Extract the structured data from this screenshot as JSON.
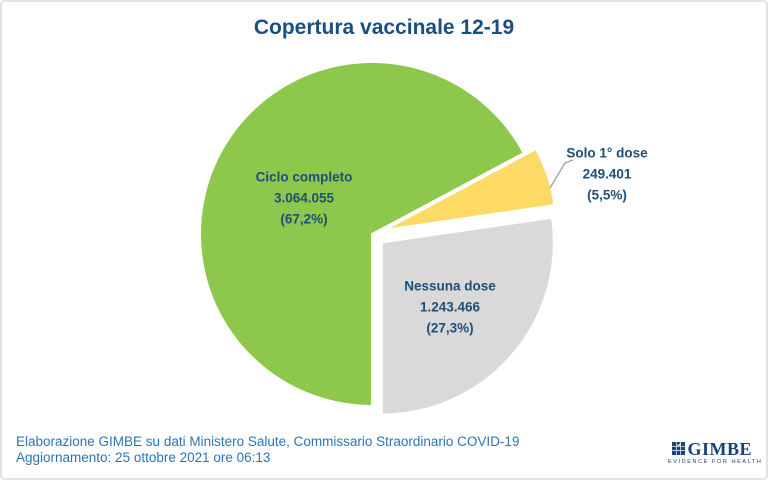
{
  "title": "Copertura vaccinale 12-19",
  "chart_data": {
    "type": "pie",
    "title": "Copertura vaccinale 12-19",
    "start_angle_deg": 180,
    "direction": "clockwise",
    "legend": "none",
    "label_color": "#1f4e79",
    "slices": [
      {
        "label": "Ciclo completo",
        "value": 3064055,
        "value_text": "3.064.055",
        "pct": 67.2,
        "pct_text": "(67,2%)",
        "color": "#8dc74b",
        "explode": 0
      },
      {
        "label": "Solo 1° dose",
        "value": 249401,
        "value_text": "249.401",
        "pct": 5.5,
        "pct_text": "(5,5%)",
        "color": "#fdd965",
        "explode": 13
      },
      {
        "label": "Nessuna dose",
        "value": 1243466,
        "value_text": "1.243.466",
        "pct": 27.3,
        "pct_text": "(27,3%)",
        "color": "#d9d9d9",
        "explode": 13
      }
    ]
  },
  "footer": {
    "line1": "Elaborazione GIMBE su dati Ministero Salute, Commissario Straordinario COVID-19",
    "line2": "Aggiornamento: 25 ottobre 2021 ore 06:13"
  },
  "logo": {
    "name": "GIMBE",
    "tagline": "EVIDENCE FOR HEALTH",
    "mark": "gimbe-mosaic-check-icon"
  },
  "colors": {
    "title_text": "#1c4f80",
    "slice_label_text": "#1f4e79",
    "footer_text": "#2e74b5",
    "leader_line": "#a6a6a6",
    "border": "#e2e2e2",
    "background": "#ffffff"
  }
}
